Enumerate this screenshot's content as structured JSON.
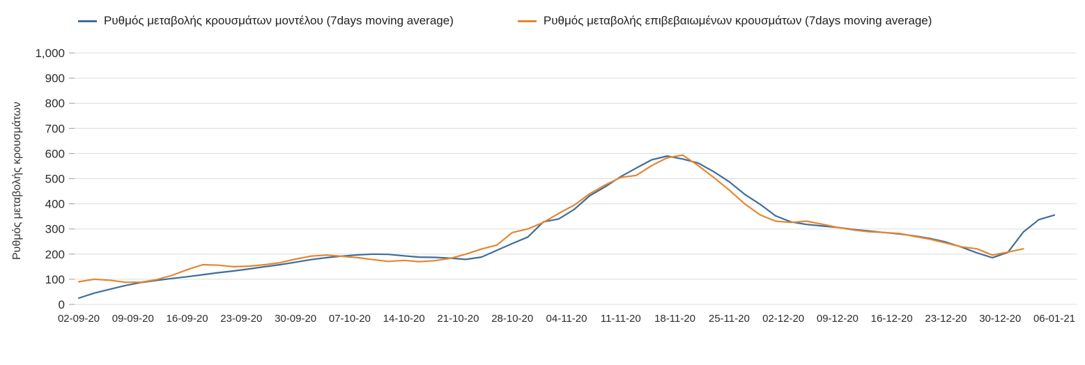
{
  "axis": {
    "ylabel": "Ρυθμός μεταβολής κρουσμάτων"
  },
  "colors": {
    "model_line": "#3d6d9e",
    "confirmed_line": "#e5862e",
    "gridline": "#dcdcdc",
    "tick_text": "#2b2b2b"
  },
  "chart_data": {
    "type": "line",
    "title": "",
    "xlabel": "",
    "ylabel": "Ρυθμός μεταβολής κρουσμάτων",
    "ylim": [
      0,
      1000
    ],
    "grid": "horizontal",
    "legend_position": "top",
    "y_tick_values": [
      0,
      100,
      200,
      300,
      400,
      500,
      600,
      700,
      800,
      900,
      1000
    ],
    "y_tick_labels": [
      "0",
      "100",
      "200",
      "300",
      "400",
      "500",
      "600",
      "700",
      "800",
      "900",
      "1,000"
    ],
    "x_range_days": [
      0,
      126
    ],
    "x_tick_days": [
      0,
      7,
      14,
      21,
      28,
      35,
      42,
      49,
      56,
      63,
      70,
      77,
      84,
      91,
      98,
      105,
      112,
      119,
      126
    ],
    "x_tick_labels": [
      "02-09-20",
      "09-09-20",
      "16-09-20",
      "23-09-20",
      "30-09-20",
      "07-10-20",
      "14-10-20",
      "21-10-20",
      "28-10-20",
      "04-11-20",
      "11-11-20",
      "18-11-20",
      "25-11-20",
      "02-12-20",
      "09-12-20",
      "16-12-20",
      "23-12-20",
      "30-12-20",
      "06-01-21"
    ],
    "series": [
      {
        "name": "Ρυθμός μεταβολής κρουσμάτων μοντέλου (7days moving average)",
        "color": "#3d6d9e",
        "x": [
          0,
          2,
          4,
          6,
          8,
          10,
          12,
          14,
          16,
          18,
          20,
          22,
          24,
          26,
          28,
          30,
          32,
          34,
          36,
          38,
          40,
          42,
          44,
          46,
          48,
          50,
          52,
          54,
          56,
          58,
          60,
          62,
          64,
          66,
          68,
          70,
          72,
          74,
          76,
          78,
          80,
          82,
          84,
          86,
          88,
          90,
          92,
          94,
          96,
          98,
          100,
          102,
          104,
          106,
          108,
          110,
          112,
          114,
          116,
          118,
          120,
          122,
          124,
          126
        ],
        "values": [
          25,
          45,
          60,
          75,
          87,
          95,
          103,
          110,
          118,
          126,
          133,
          141,
          150,
          158,
          168,
          178,
          186,
          192,
          197,
          200,
          199,
          193,
          188,
          187,
          184,
          179,
          188,
          215,
          242,
          268,
          328,
          340,
          378,
          432,
          468,
          508,
          542,
          575,
          590,
          578,
          562,
          528,
          488,
          438,
          398,
          352,
          328,
          318,
          312,
          306,
          298,
          292,
          286,
          280,
          272,
          262,
          248,
          228,
          205,
          186,
          207,
          288,
          337,
          355
        ]
      },
      {
        "name": "Ρυθμός μεταβολής επιβεβαιωμένων κρουσμάτων (7days moving average)",
        "color": "#e5862e",
        "x": [
          0,
          2,
          4,
          6,
          8,
          10,
          12,
          14,
          16,
          18,
          20,
          22,
          24,
          26,
          28,
          30,
          32,
          34,
          36,
          38,
          40,
          42,
          44,
          46,
          48,
          50,
          52,
          54,
          56,
          58,
          60,
          62,
          64,
          66,
          68,
          70,
          72,
          74,
          76,
          78,
          80,
          82,
          84,
          86,
          88,
          90,
          92,
          94,
          96,
          98,
          100,
          102,
          104,
          106,
          108,
          110,
          112,
          114,
          116,
          118,
          120,
          122
        ],
        "values": [
          90,
          100,
          96,
          88,
          88,
          98,
          115,
          138,
          158,
          156,
          150,
          152,
          158,
          166,
          180,
          192,
          196,
          191,
          186,
          178,
          171,
          175,
          170,
          174,
          183,
          200,
          220,
          236,
          286,
          300,
          326,
          362,
          395,
          440,
          475,
          505,
          513,
          552,
          583,
          594,
          552,
          505,
          455,
          400,
          356,
          331,
          326,
          331,
          319,
          306,
          296,
          289,
          286,
          282,
          270,
          259,
          244,
          229,
          221,
          196,
          208,
          221
        ]
      }
    ]
  }
}
